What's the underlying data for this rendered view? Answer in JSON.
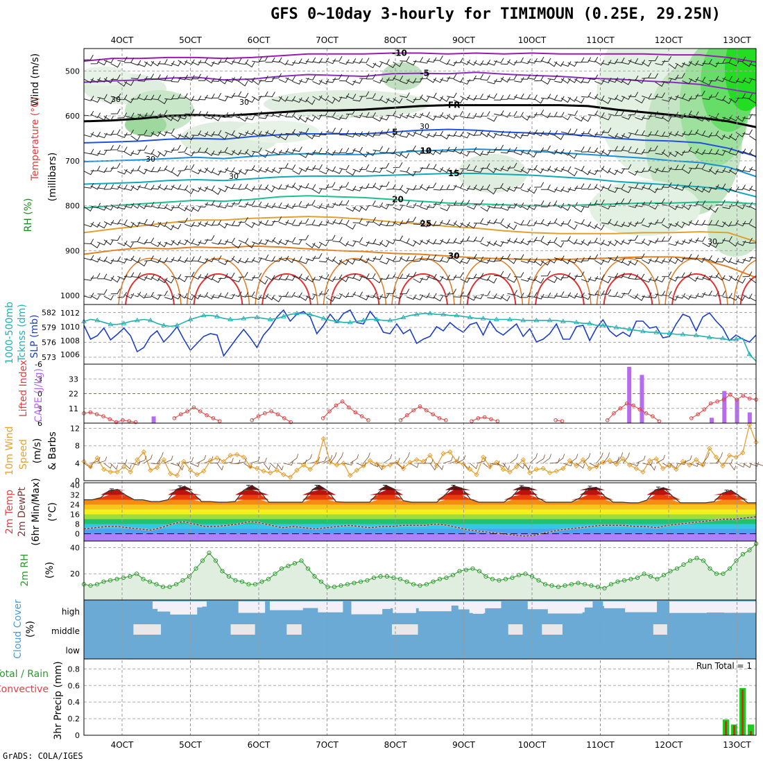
{
  "title": "GFS 0~10day 3-hourly for TIMIMOUN (0.25E, 29.25N)",
  "credit": "GrADS: COLA/IGES",
  "x_labels": [
    "4OCT",
    "5OCT",
    "6OCT",
    "7OCT",
    "8OCT",
    "9OCT",
    "10OCT",
    "11OCT",
    "12OCT",
    "13OCT"
  ],
  "chart_data": [
    {
      "type": "contour",
      "panel": "upper-air",
      "ylabel_parts": [
        "RH (%)",
        "Temperature (°C)",
        "Wind (m/s)",
        "(millibars)"
      ],
      "y_ticks": [
        500,
        600,
        700,
        800,
        900,
        1000
      ],
      "ylim": [
        450,
        1020
      ],
      "isotherms": [
        {
          "label": "-10",
          "color": "#9a1ab0",
          "p": [
            478,
            472,
            472,
            470,
            470,
            472,
            470,
            466,
            462,
            462,
            462,
            460,
            460,
            462,
            460,
            462,
            460,
            462,
            462,
            462,
            462,
            464,
            464,
            470,
            480
          ]
        },
        {
          "label": "-5",
          "color": "#8a2bc0",
          "p": [
            525,
            522,
            520,
            516,
            514,
            520,
            518,
            512,
            508,
            510,
            512,
            506,
            505,
            506,
            503,
            507,
            510,
            512,
            516,
            518,
            522,
            525,
            530,
            540,
            550
          ]
        },
        {
          "label": "FR",
          "color": "#000000",
          "p": [
            612,
            610,
            606,
            600,
            598,
            600,
            596,
            592,
            588,
            588,
            586,
            582,
            578,
            576,
            576,
            576,
            576,
            576,
            578,
            586,
            592,
            598,
            604,
            612,
            625
          ]
        },
        {
          "label": "5",
          "color": "#2050e0",
          "p": [
            660,
            658,
            656,
            652,
            650,
            652,
            646,
            642,
            640,
            640,
            640,
            636,
            632,
            630,
            632,
            636,
            638,
            640,
            644,
            650,
            654,
            656,
            660,
            672,
            690
          ]
        },
        {
          "label": "10",
          "color": "#1890d8",
          "p": [
            702,
            700,
            698,
            695,
            692,
            695,
            690,
            686,
            684,
            686,
            686,
            682,
            678,
            676,
            674,
            676,
            678,
            682,
            686,
            690,
            694,
            700,
            704,
            714,
            735
          ]
        },
        {
          "label": "15",
          "color": "#10a8b8",
          "p": [
            752,
            750,
            748,
            744,
            742,
            744,
            740,
            736,
            734,
            734,
            734,
            732,
            730,
            728,
            728,
            730,
            732,
            736,
            740,
            746,
            750,
            754,
            758,
            764,
            780
          ]
        },
        {
          "label": "20",
          "color": "#18c090",
          "p": [
            805,
            800,
            796,
            792,
            788,
            790,
            786,
            780,
            778,
            780,
            782,
            786,
            790,
            794,
            796,
            798,
            800,
            800,
            798,
            796,
            794,
            794,
            792,
            792,
            796
          ]
        },
        {
          "label": "25",
          "color": "#e0a030",
          "p": [
            860,
            852,
            845,
            838,
            832,
            832,
            828,
            826,
            824,
            826,
            830,
            836,
            840,
            846,
            850,
            856,
            860,
            862,
            862,
            862,
            860,
            860,
            858,
            860,
            880
          ]
        },
        {
          "label": "30",
          "color": "#e08020",
          "p": [
            908,
            900,
            894,
            896,
            892,
            894,
            890,
            892,
            896,
            900,
            902,
            906,
            908,
            912,
            916,
            918,
            920,
            920,
            918,
            916,
            914,
            914,
            918,
            936,
            960
          ]
        }
      ],
      "rh_contour_labels": [
        "30"
      ],
      "wind_barbs": true
    },
    {
      "type": "line",
      "panel": "thickness-slp",
      "ylabel_parts": [
        "1000-500mb",
        "Tcknss (dm)",
        "SLP (mb)"
      ],
      "y_left_ticks": [
        573,
        576,
        579,
        582
      ],
      "y_right_ticks": [
        1006,
        1008,
        1010,
        1012
      ],
      "series": [
        {
          "name": "SLP (mb)",
          "color": "#1a3ec8",
          "values": [
            1010.2,
            1008.2,
            1008.7,
            1009.8,
            1008.1,
            1008.9,
            1009.8,
            1008.7,
            1006.4,
            1007.0,
            1008.6,
            1009.4,
            1007.8,
            1008.8,
            1010.0,
            1008.2,
            1006.6,
            1007.6,
            1008.6,
            1009.0,
            1008.8,
            1005.8,
            1007.1,
            1008.4,
            1009.6,
            1008.4,
            1007.0,
            1008.8,
            1009.9,
            1011.4,
            1012.4,
            1010.8,
            1011.8,
            1012.2,
            1011.4,
            1009.0,
            1010.2,
            1011.8,
            1010.6,
            1011.9,
            1012.4,
            1010.6,
            1010.4,
            1012.2,
            1011.0,
            1009.2,
            1009.0,
            1010.4,
            1009.0,
            1009.6,
            1007.6,
            1008.2,
            1008.6,
            1010.0,
            1009.4,
            1010.6,
            1009.8,
            1009.2,
            1010.3,
            1010.6,
            1008.8,
            1010.8,
            1009.4,
            1008.8,
            1009.6,
            1010.4,
            1008.6,
            1009.7,
            1007.8,
            1008.2,
            1009.0,
            1010.4,
            1008.2,
            1008.2,
            1010.0,
            1010.2,
            1008.0,
            1009.8,
            1011.0,
            1009.4,
            1008.6,
            1009.2,
            1008.6,
            1010.8,
            1010.8,
            1009.8,
            1010.0,
            1008.4,
            1008.6,
            1010.4,
            1011.8,
            1011.4,
            1009.4,
            1011.4,
            1012.0,
            1010.8,
            1009.8,
            1008.0,
            1008.8,
            1008.2,
            1007.8,
            1008.8
          ]
        },
        {
          "name": "1000-500mb Tcknss (dm)",
          "color": "#20b0b0",
          "values": [
            580.2,
            580.6,
            580.4,
            580.0,
            579.6,
            579.6,
            579.8,
            580.2,
            580.4,
            580.6,
            580.4,
            579.8,
            579.4,
            579.2,
            579.4,
            580.0,
            580.6,
            581.0,
            581.4,
            581.4,
            581.2,
            580.8,
            580.6,
            580.6,
            580.8,
            581.0,
            581.0,
            580.8,
            580.6,
            580.8,
            581.2,
            581.6,
            581.8,
            581.8,
            581.6,
            581.2,
            580.8,
            580.4,
            580.2,
            580.0,
            580.0,
            580.2,
            580.4,
            580.6,
            580.6,
            580.4,
            580.4,
            580.6,
            581.0,
            581.4,
            581.6,
            581.8,
            581.8,
            581.6,
            581.6,
            581.4,
            581.4,
            581.2,
            581.0,
            580.8,
            580.8,
            580.6,
            580.6,
            580.6,
            580.6,
            580.6,
            580.4,
            580.4,
            580.4,
            580.4,
            580.4,
            580.4,
            580.2,
            580.2,
            580.0,
            579.8,
            579.8,
            579.4,
            579.4,
            579.2,
            579.0,
            578.8,
            578.6,
            578.4,
            578.2,
            578.0,
            578.0,
            577.8,
            577.8,
            577.6,
            577.6,
            577.4,
            577.4,
            577.2,
            577.0,
            576.8,
            576.8,
            576.4,
            576.6,
            576.8,
            573.6,
            572.2
          ]
        }
      ]
    },
    {
      "type": "bar+line",
      "panel": "cape-li",
      "ylabel_parts": [
        "Lifted Index",
        "CAPE (J/kg)"
      ],
      "li_ticks": [
        -6,
        -3,
        0,
        3,
        6
      ],
      "cape_ticks": [
        11,
        22,
        33
      ],
      "li": [
        4.0,
        3.8,
        4.2,
        4.6,
        5.2,
        5.8,
        5.4,
        5.6,
        5.8,
        null,
        null,
        null,
        null,
        null,
        5.0,
        4.2,
        3.6,
        2.8,
        3.6,
        4.4,
        5.0,
        5.6,
        null,
        null,
        null,
        null,
        5.4,
        4.6,
        4.0,
        3.6,
        4.2,
        5.0,
        5.8,
        null,
        null,
        null,
        null,
        5.0,
        3.6,
        2.4,
        1.6,
        2.8,
        3.8,
        4.6,
        5.4,
        null,
        null,
        null,
        null,
        5.4,
        4.4,
        3.4,
        2.6,
        3.4,
        4.2,
        5.0,
        5.4,
        null,
        null,
        null,
        5.6,
        5.0,
        4.8,
        5.2,
        5.6,
        null,
        null,
        null,
        null,
        null,
        null,
        null,
        null,
        5.4,
        5.6,
        null,
        null,
        null,
        null,
        null,
        null,
        5.4,
        4.0,
        3.0,
        2.0,
        2.4,
        3.2,
        4.0,
        4.6,
        5.6,
        null,
        null,
        null,
        null,
        5.0,
        4.2,
        3.2,
        2.0,
        1.6,
        1.2,
        0.2,
        1.2,
        0.4,
        1.0,
        1.2
      ],
      "cape": [
        0,
        0,
        0,
        0,
        0,
        0,
        0,
        0,
        0,
        0,
        0,
        5.0,
        0,
        0,
        0,
        0,
        0,
        0,
        0,
        0,
        0,
        0,
        0,
        0,
        0,
        0,
        0,
        0,
        0,
        0,
        0,
        0,
        0,
        0,
        0,
        0,
        0,
        0,
        0,
        0,
        0,
        0,
        0,
        0,
        0,
        0,
        0,
        0,
        0,
        0,
        0,
        0,
        0,
        0,
        0,
        0,
        0,
        0,
        0,
        0,
        0,
        0,
        0,
        0,
        0,
        0,
        0,
        0,
        0,
        0,
        0,
        0,
        0,
        0,
        0,
        0,
        0,
        0,
        0,
        0,
        0,
        0,
        0,
        0,
        0,
        0,
        42,
        0,
        36,
        0,
        0,
        0,
        0,
        0,
        0,
        0,
        0,
        0,
        0,
        4,
        0,
        24,
        0,
        18,
        0,
        8,
        0
      ]
    },
    {
      "type": "line",
      "panel": "wind10m",
      "ylabel_parts": [
        "10m Wind",
        "Speed",
        "(m/s)",
        "& Barbs"
      ],
      "y_ticks": [
        0,
        4,
        8,
        12
      ],
      "values": [
        4.4,
        3.2,
        5.2,
        2.6,
        2.0,
        2.0,
        3.2,
        2.0,
        4.8,
        6.6,
        2.4,
        3.0,
        4.8,
        1.6,
        1.2,
        4.4,
        2.4,
        1.4,
        2.2,
        4.6,
        5.2,
        4.4,
        5.8,
        6.0,
        5.4,
        3.2,
        2.8,
        2.2,
        1.8,
        2.4,
        1.4,
        0.8,
        2.4,
        3.6,
        2.6,
        4.2,
        9.6,
        4.2,
        3.6,
        4.0,
        1.2,
        2.4,
        3.4,
        4.6,
        3.8,
        3.2,
        3.6,
        4.2,
        2.8,
        4.2,
        4.8,
        4.4,
        5.8,
        3.4,
        6.2,
        6.6,
        4.4,
        3.8,
        2.6,
        1.4,
        5.4,
        3.2,
        4.2,
        2.6,
        2.0,
        3.2,
        4.8,
        1.8,
        2.6,
        2.8,
        1.8,
        2.2,
        2.8,
        4.6,
        3.4,
        4.8,
        2.8,
        3.2,
        4.2,
        4.6,
        3.8,
        5.0,
        3.6,
        2.8,
        2.0,
        4.6,
        5.0,
        2.8,
        3.6,
        2.6,
        4.4,
        3.6,
        4.8,
        3.6,
        7.4,
        5.4,
        3.4,
        5.8,
        5.4,
        6.4,
        12.8,
        8.8
      ]
    },
    {
      "type": "area",
      "panel": "temp2m",
      "ylabel_parts": [
        "2m Temp",
        "2m DewPt",
        "(6hr Min/Max)",
        "(°C)"
      ],
      "y_ticks": [
        0,
        8,
        16,
        24,
        32,
        40
      ],
      "band_colors": [
        "#b080ff",
        "#4fa0f0",
        "#34c7e6",
        "#23c06e",
        "#a0dc3c",
        "#f4f01e",
        "#f7c61e",
        "#f48c14",
        "#e83c0f",
        "#b9120f",
        "#6e0a0a"
      ],
      "temp_daily_max": [
        37.0,
        39.5,
        40.0,
        40.0,
        40.0,
        40.0,
        39.8,
        39.2,
        38.5,
        36.0
      ],
      "temp_daily_min": [
        28.0,
        26.5,
        26.0,
        26.0,
        26.0,
        26.0,
        26.0,
        26.0,
        25.5,
        25.5
      ],
      "dewpoint": [
        4,
        5,
        6,
        6,
        5,
        4,
        3,
        5,
        8,
        10,
        8,
        6,
        6,
        7,
        8,
        10,
        9,
        7,
        5,
        6,
        5,
        4,
        5,
        6,
        7,
        6,
        5,
        6,
        6,
        7,
        7,
        7,
        8,
        7,
        5,
        3,
        2,
        1,
        0,
        -1,
        -2,
        -1,
        1,
        3,
        4,
        5,
        6,
        7,
        7,
        7,
        6,
        6,
        5,
        7,
        8,
        9,
        10,
        11,
        12,
        12,
        13,
        14
      ]
    },
    {
      "type": "area",
      "panel": "rh2m",
      "ylabel_parts": [
        "2m RH",
        "(%)"
      ],
      "y_ticks": [
        20,
        40
      ],
      "values": [
        12,
        11,
        12,
        14,
        15,
        16,
        17,
        18,
        20,
        16,
        14,
        12,
        10,
        10,
        12,
        15,
        18,
        24,
        30,
        36,
        30,
        22,
        18,
        15,
        14,
        12,
        12,
        14,
        16,
        20,
        24,
        26,
        28,
        30,
        24,
        18,
        14,
        10,
        10,
        11,
        12,
        13,
        14,
        15,
        17,
        18,
        18,
        17,
        16,
        14,
        12,
        11,
        12,
        14,
        16,
        17,
        19,
        22,
        23,
        24,
        22,
        18,
        16,
        15,
        16,
        17,
        19,
        20,
        18,
        15,
        12,
        11,
        10,
        11,
        12,
        13,
        12,
        11,
        10,
        9,
        12,
        14,
        15,
        16,
        17,
        20,
        18,
        16,
        19,
        22,
        24,
        27,
        30,
        32,
        30,
        24,
        20,
        20,
        24,
        30,
        35,
        38,
        43
      ]
    },
    {
      "type": "heatmap",
      "panel": "cloud",
      "ylabel_parts": [
        "Cloud Cover",
        "(%)"
      ],
      "levels": [
        "high",
        "middle",
        "low"
      ]
    },
    {
      "type": "bar",
      "panel": "precip",
      "ylabel_parts": [
        "Total / Rain",
        "Convective",
        "3hr Precip (mm)"
      ],
      "y_ticks": [
        0,
        0.2,
        0.4,
        0.6,
        0.8
      ],
      "run_total_label": "Run Total = 1",
      "total": {
        "color": "#22c822",
        "values": [
          0.19,
          0.13,
          0.57,
          0.13
        ]
      },
      "convective": {
        "color": "#e82020",
        "values": [
          0.17,
          0.12,
          0.55,
          0.05
        ]
      }
    }
  ]
}
